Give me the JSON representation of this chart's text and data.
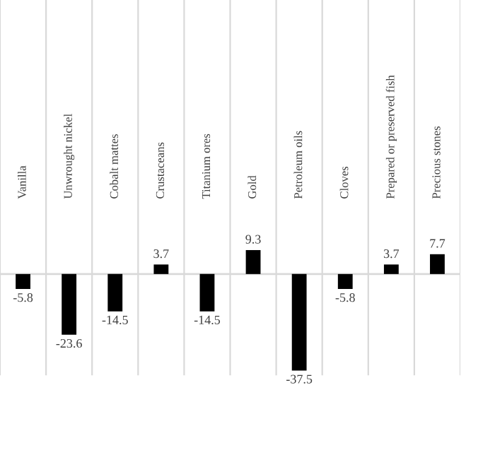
{
  "chart_data": {
    "type": "bar",
    "categories": [
      "Vanilla",
      "Unwrought nickel",
      "Cobalt mattes",
      "Crustaceans",
      "Titanium ores",
      "Gold",
      "Petroleum oils",
      "Cloves",
      "Prepared or preserved fish",
      "Precious stones"
    ],
    "values": [
      -5.8,
      -23.6,
      -14.5,
      3.7,
      -14.5,
      9.3,
      -37.5,
      -5.8,
      3.7,
      7.7
    ],
    "color": "#000000",
    "data_labels": true,
    "grid": "x",
    "legend": false
  }
}
